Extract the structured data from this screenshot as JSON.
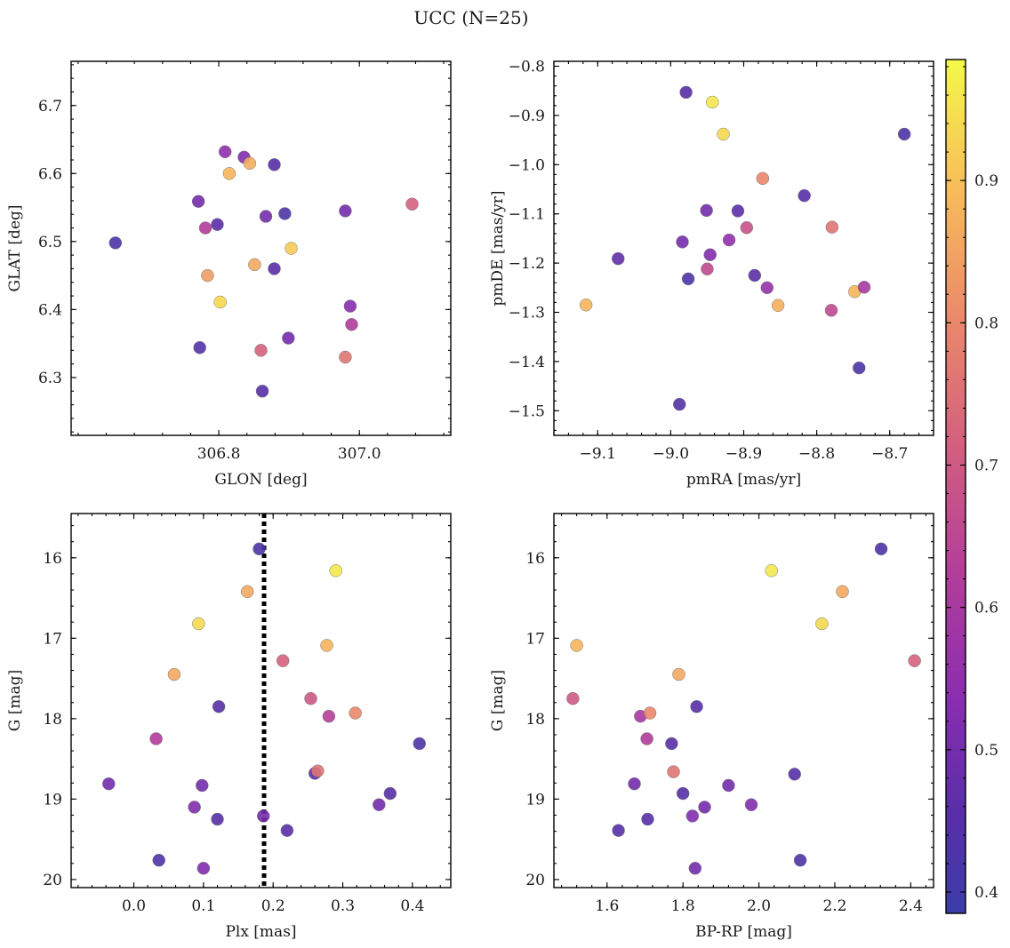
{
  "title": "UCC (N=25)",
  "colors": {
    "colormap": "plasma",
    "vline": "#000000"
  },
  "colorbar": {
    "min": 0.385,
    "max": 0.985,
    "ticks": [
      0.4,
      0.5,
      0.6,
      0.7,
      0.8,
      0.9
    ],
    "tick_labels": [
      "0.4",
      "0.5",
      "0.6",
      "0.7",
      "0.8",
      "0.9"
    ]
  },
  "chart_data": [
    {
      "type": "scatter",
      "xlabel": "GLON [deg]",
      "ylabel": "GLAT [deg]",
      "xlim": [
        306.59,
        307.13
      ],
      "ylim": [
        6.215,
        6.765
      ],
      "xticks": [
        306.8,
        307.0
      ],
      "xtick_labels": [
        "306.8",
        "307.0"
      ],
      "yticks": [
        6.3,
        6.4,
        6.5,
        6.6,
        6.7
      ],
      "ytick_labels": [
        "6.3",
        "6.4",
        "6.5",
        "6.6",
        "6.7"
      ],
      "x": [
        306.653,
        306.773,
        306.798,
        306.815,
        306.771,
        306.781,
        306.784,
        306.802,
        306.809,
        306.836,
        306.844,
        306.851,
        306.86,
        306.862,
        306.879,
        306.879,
        306.899,
        306.903,
        306.894,
        306.867,
        306.98,
        306.98,
        306.989,
        306.987,
        307.075
      ],
      "y": [
        6.498,
        6.344,
        6.525,
        6.6,
        6.559,
        6.52,
        6.45,
        6.411,
        6.632,
        6.624,
        6.615,
        6.466,
        6.34,
        6.28,
        6.46,
        6.613,
        6.358,
        6.49,
        6.541,
        6.537,
        6.545,
        6.33,
        6.378,
        6.405,
        6.555
      ],
      "c": [
        0.43,
        0.44,
        0.46,
        0.88,
        0.5,
        0.62,
        0.84,
        0.94,
        0.55,
        0.52,
        0.87,
        0.86,
        0.72,
        0.45,
        0.46,
        0.45,
        0.5,
        0.92,
        0.43,
        0.5,
        0.5,
        0.76,
        0.62,
        0.53,
        0.72
      ]
    },
    {
      "type": "scatter",
      "xlabel": "pmRA [mas/yr]",
      "ylabel": "pmDE [mas/yr]",
      "xlim": [
        -9.16,
        -8.64
      ],
      "ylim": [
        -1.55,
        -0.79
      ],
      "xticks": [
        -9.1,
        -9.0,
        -8.9,
        -8.8,
        -8.7
      ],
      "xtick_labels": [
        "−9.1",
        "−9.0",
        "−8.9",
        "−8.8",
        "−8.7"
      ],
      "yticks": [
        -1.5,
        -1.4,
        -1.3,
        -1.2,
        -1.1,
        -1.0,
        -0.9,
        -0.8
      ],
      "ytick_labels": [
        "−1.5",
        "−1.4",
        "−1.3",
        "−1.2",
        "−1.1",
        "−1.0",
        "−0.9",
        "−0.8"
      ],
      "x": [
        -8.979,
        -8.943,
        -8.928,
        -9.116,
        -9.072,
        -8.984,
        -8.95,
        -8.976,
        -8.951,
        -8.946,
        -8.92,
        -8.908,
        -8.896,
        -8.885,
        -8.874,
        -8.868,
        -8.853,
        -8.817,
        -8.779,
        -8.78,
        -8.748,
        -8.742,
        -8.735,
        -8.68,
        -8.988
      ],
      "y": [
        -0.853,
        -0.873,
        -0.938,
        -1.285,
        -1.191,
        -1.157,
        -1.212,
        -1.232,
        -1.093,
        -1.183,
        -1.153,
        -1.094,
        -1.128,
        -1.225,
        -1.028,
        -1.25,
        -1.286,
        -1.063,
        -1.127,
        -1.296,
        -1.258,
        -1.413,
        -1.249,
        -0.938,
        -1.487
      ],
      "c": [
        0.45,
        0.96,
        0.94,
        0.88,
        0.47,
        0.5,
        0.66,
        0.43,
        0.5,
        0.52,
        0.55,
        0.46,
        0.68,
        0.46,
        0.8,
        0.56,
        0.87,
        0.45,
        0.76,
        0.66,
        0.88,
        0.43,
        0.6,
        0.43,
        0.44
      ]
    },
    {
      "type": "scatter",
      "xlabel": "Plx [mas]",
      "ylabel": "G [mag]",
      "xlim": [
        -0.09,
        0.455
      ],
      "ylim": [
        20.1,
        15.45
      ],
      "y_inverted": true,
      "vline": 0.187,
      "xticks": [
        0.0,
        0.1,
        0.2,
        0.3,
        0.4
      ],
      "xtick_labels": [
        "0.0",
        "0.1",
        "0.2",
        "0.3",
        "0.4"
      ],
      "yticks": [
        16,
        17,
        18,
        19,
        20
      ],
      "ytick_labels": [
        "16",
        "17",
        "18",
        "19",
        "20"
      ],
      "x": [
        -0.036,
        0.032,
        0.058,
        0.093,
        0.036,
        0.087,
        0.098,
        0.1,
        0.12,
        0.122,
        0.163,
        0.18,
        0.186,
        0.214,
        0.22,
        0.254,
        0.26,
        0.264,
        0.277,
        0.28,
        0.29,
        0.318,
        0.352,
        0.368,
        0.41
      ],
      "y": [
        18.81,
        18.25,
        17.45,
        16.82,
        19.76,
        19.1,
        18.83,
        19.86,
        19.25,
        17.85,
        16.42,
        15.89,
        19.21,
        17.28,
        19.39,
        17.75,
        18.68,
        18.65,
        17.09,
        17.97,
        16.16,
        17.93,
        19.07,
        18.93,
        18.31
      ],
      "c": [
        0.5,
        0.62,
        0.86,
        0.94,
        0.43,
        0.52,
        0.5,
        0.52,
        0.45,
        0.45,
        0.86,
        0.43,
        0.5,
        0.72,
        0.46,
        0.7,
        0.46,
        0.76,
        0.88,
        0.63,
        0.96,
        0.8,
        0.5,
        0.45,
        0.43
      ]
    },
    {
      "type": "scatter",
      "xlabel": "BP-RP [mag]",
      "ylabel": "G [mag]",
      "xlim": [
        1.46,
        2.46
      ],
      "ylim": [
        20.1,
        15.45
      ],
      "y_inverted": true,
      "xticks": [
        1.6,
        1.8,
        2.0,
        2.2,
        2.4
      ],
      "xtick_labels": [
        "1.6",
        "1.8",
        "2.0",
        "2.2",
        "2.4"
      ],
      "yticks": [
        16,
        17,
        18,
        19,
        20
      ],
      "ytick_labels": [
        "16",
        "17",
        "18",
        "19",
        "20"
      ],
      "x": [
        1.52,
        1.51,
        1.63,
        1.672,
        1.688,
        1.705,
        1.707,
        1.713,
        1.77,
        1.775,
        1.789,
        1.8,
        1.825,
        1.832,
        1.836,
        1.857,
        1.92,
        1.98,
        2.033,
        2.094,
        2.109,
        2.166,
        2.22,
        2.322,
        2.41
      ],
      "y": [
        17.09,
        17.75,
        19.39,
        18.81,
        17.97,
        18.25,
        19.25,
        17.93,
        18.31,
        18.66,
        17.45,
        18.93,
        19.21,
        19.86,
        17.85,
        19.1,
        18.83,
        19.07,
        16.16,
        18.69,
        19.76,
        16.82,
        16.42,
        15.89,
        17.28
      ],
      "c": [
        0.88,
        0.7,
        0.45,
        0.5,
        0.6,
        0.62,
        0.45,
        0.8,
        0.45,
        0.76,
        0.86,
        0.45,
        0.52,
        0.5,
        0.45,
        0.5,
        0.5,
        0.52,
        0.96,
        0.45,
        0.43,
        0.94,
        0.86,
        0.43,
        0.72
      ]
    }
  ]
}
